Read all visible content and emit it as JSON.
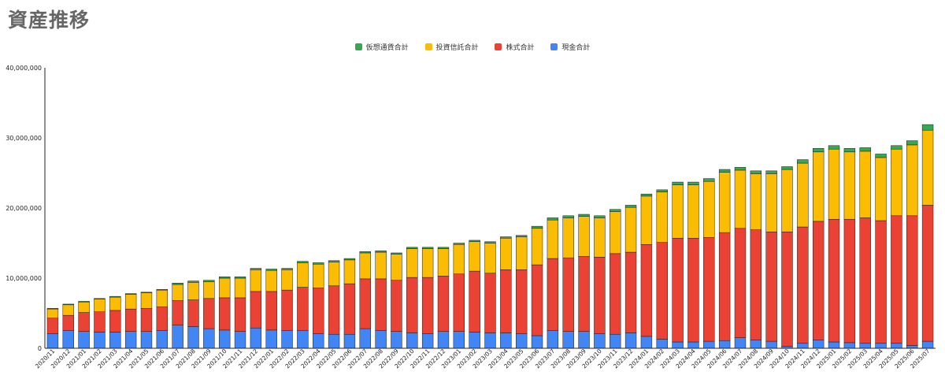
{
  "title": "資産推移",
  "colors": {
    "crypto": "#34a853",
    "fund": "#fbbc04",
    "stock": "#ea4335",
    "cash": "#4285f4"
  },
  "legend": [
    {
      "key": "crypto",
      "label": "仮想通貨合計"
    },
    {
      "key": "fund",
      "label": "投資信託合計"
    },
    {
      "key": "stock",
      "label": "株式合計"
    },
    {
      "key": "cash",
      "label": "現金合計"
    }
  ],
  "chart_data": {
    "type": "bar",
    "stacked": true,
    "title": "資産推移",
    "xlabel": "",
    "ylabel": "",
    "ylim": [
      0,
      40000000
    ],
    "y_ticks": [
      0,
      10000000,
      20000000,
      30000000,
      40000000
    ],
    "y_tick_labels": [
      "0",
      "10,000,000",
      "20,000,000",
      "30,000,000",
      "40,000,000"
    ],
    "grid": false,
    "legend_position": "top",
    "categories": [
      "2020/11",
      "2020/12",
      "2021/01",
      "2021/02",
      "2021/03",
      "2021/04",
      "2021/05",
      "2021/06",
      "2021/07",
      "2021/08",
      "2021/09",
      "2021/10",
      "2021/11",
      "2021/12",
      "2022/01",
      "2022/02",
      "2022/03",
      "2022/04",
      "2022/05",
      "2022/06",
      "2022/07",
      "2022/08",
      "2022/09",
      "2022/10",
      "2022/11",
      "2022/12",
      "2023/01",
      "2023/02",
      "2023/03",
      "2023/04",
      "2023/05",
      "2023/06",
      "2023/07",
      "2023/08",
      "2023/09",
      "2023/10",
      "2023/11",
      "2023/12",
      "2024/01",
      "2024/02",
      "2024/03",
      "2024/04",
      "2024/05",
      "2024/06",
      "2024/07",
      "2024/08",
      "2024/09",
      "2024/10",
      "2024/11",
      "2024/12",
      "2025/01",
      "2025/02",
      "2025/03",
      "2025/04",
      "2025/05",
      "2025/06",
      "2025/07"
    ],
    "x_tick_labels": [
      "2020/11",
      "2020/12",
      "2021/01",
      "2021/02",
      "2021/03",
      "2021/04",
      "2021/05",
      "2021/06",
      "2021/07",
      "2021/08",
      "2021/09",
      "2021/10",
      "2021/11",
      "2021/12",
      "2022/01",
      "2022/02",
      "2022/03",
      "2022/04",
      "2022/05",
      "2022/06",
      "2022/07",
      "2022/08",
      "2022/09",
      "2022/10",
      "2022/11",
      "2022/12",
      "2023/01",
      "2023/02",
      "2023/03",
      "2023/04",
      "2023/05",
      "2023/06",
      "2023/07",
      "2023/08",
      "2023/09",
      "2023/10",
      "2023/11",
      "2023/12",
      "2024/01",
      "2024/02",
      "2024/03",
      "2024/04",
      "2024/05",
      "2024/06",
      "2024/07",
      "2024/08",
      "2024/09",
      "2024/10",
      "2024/11",
      "2024/12",
      "2025/01",
      "2025/02",
      "2025/03",
      "2025/04",
      "2025/05",
      "2025/06",
      "2025/07"
    ],
    "series": [
      {
        "name": "現金合計",
        "key": "cash",
        "values": [
          2100000,
          2500000,
          2400000,
          2300000,
          2300000,
          2400000,
          2400000,
          2500000,
          3300000,
          3100000,
          2800000,
          2600000,
          2400000,
          2900000,
          2600000,
          2500000,
          2500000,
          2100000,
          2000000,
          2000000,
          2800000,
          2500000,
          2400000,
          2200000,
          2100000,
          2400000,
          2400000,
          2300000,
          2200000,
          2200000,
          2100000,
          1800000,
          2500000,
          2400000,
          2400000,
          2100000,
          2000000,
          2200000,
          1700000,
          1300000,
          900000,
          900000,
          1000000,
          1100000,
          1500000,
          1200000,
          1000000,
          300000,
          700000,
          1200000,
          900000,
          800000,
          700000,
          700000,
          700000,
          400000,
          1000000
        ]
      },
      {
        "name": "株式合計",
        "key": "stock",
        "values": [
          2200000,
          2200000,
          2700000,
          2900000,
          3100000,
          3200000,
          3300000,
          3400000,
          3500000,
          3800000,
          4300000,
          4600000,
          4800000,
          5200000,
          5500000,
          5800000,
          6200000,
          6500000,
          6900000,
          7200000,
          7100000,
          7400000,
          7300000,
          7900000,
          8000000,
          7900000,
          8200000,
          8700000,
          8500000,
          9000000,
          9100000,
          10100000,
          10300000,
          10500000,
          10700000,
          10900000,
          11500000,
          11500000,
          13100000,
          13800000,
          14800000,
          14800000,
          14800000,
          15400000,
          15600000,
          15700000,
          15600000,
          16300000,
          16600000,
          16900000,
          17500000,
          17600000,
          17900000,
          17500000,
          18200000,
          18500000,
          19400000
        ]
      },
      {
        "name": "投資信託合計",
        "key": "fund",
        "values": [
          1300000,
          1500000,
          1500000,
          1800000,
          1900000,
          2100000,
          2200000,
          2400000,
          2300000,
          2500000,
          2400000,
          2800000,
          2800000,
          3100000,
          3000000,
          2900000,
          3500000,
          3400000,
          3400000,
          3400000,
          3700000,
          3800000,
          3700000,
          4100000,
          4100000,
          3900000,
          4200000,
          4200000,
          4300000,
          4500000,
          4700000,
          5200000,
          5500000,
          5700000,
          5700000,
          5600000,
          6000000,
          6400000,
          6900000,
          7200000,
          7600000,
          7600000,
          8000000,
          8600000,
          8300000,
          8000000,
          8300000,
          8900000,
          9100000,
          9900000,
          10000000,
          9600000,
          9500000,
          9000000,
          9500000,
          10100000,
          10700000
        ]
      },
      {
        "name": "仮想通貨合計",
        "key": "crypto",
        "values": [
          100000,
          100000,
          100000,
          100000,
          100000,
          100000,
          100000,
          100000,
          200000,
          200000,
          200000,
          200000,
          200000,
          200000,
          200000,
          200000,
          200000,
          200000,
          200000,
          200000,
          200000,
          200000,
          200000,
          200000,
          200000,
          200000,
          200000,
          200000,
          200000,
          200000,
          200000,
          300000,
          300000,
          300000,
          300000,
          300000,
          300000,
          300000,
          300000,
          300000,
          400000,
          400000,
          400000,
          400000,
          400000,
          400000,
          400000,
          400000,
          500000,
          500000,
          500000,
          500000,
          500000,
          500000,
          500000,
          600000,
          800000
        ]
      }
    ]
  }
}
